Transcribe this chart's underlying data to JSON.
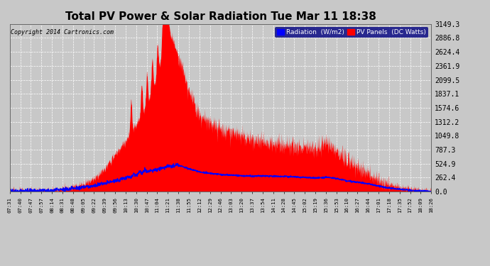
{
  "title": "Total PV Power & Solar Radiation Tue Mar 11 18:38",
  "copyright": "Copyright 2014 Cartronics.com",
  "legend_radiation": "Radiation  (W/m2)",
  "legend_pv": "PV Panels  (DC Watts)",
  "yticks": [
    0.0,
    262.4,
    524.9,
    787.3,
    1049.8,
    1312.2,
    1574.6,
    1837.1,
    2099.5,
    2361.9,
    2624.4,
    2886.8,
    3149.3
  ],
  "ymax": 3149.3,
  "background_color": "#c8c8c8",
  "plot_bg_color": "#c8c8c8",
  "grid_color": "#ffffff",
  "radiation_color": "#0000ff",
  "pv_color": "#ff0000",
  "title_fontsize": 11,
  "x_labels": [
    "07:31",
    "07:40",
    "07:47",
    "07:57",
    "08:14",
    "08:31",
    "08:48",
    "09:05",
    "09:22",
    "09:39",
    "09:56",
    "10:13",
    "10:30",
    "10:47",
    "11:04",
    "11:21",
    "11:38",
    "11:55",
    "12:12",
    "12:29",
    "12:46",
    "13:03",
    "13:20",
    "13:37",
    "13:54",
    "14:11",
    "14:28",
    "14:45",
    "15:02",
    "15:19",
    "15:36",
    "15:53",
    "16:10",
    "16:27",
    "16:44",
    "17:01",
    "17:18",
    "17:35",
    "17:52",
    "18:09",
    "18:26"
  ],
  "pv_data_raw": [
    5,
    8,
    10,
    15,
    30,
    55,
    90,
    150,
    250,
    420,
    700,
    950,
    1250,
    1620,
    2150,
    3149,
    2550,
    1900,
    1400,
    1300,
    1200,
    1100,
    1050,
    980,
    950,
    900,
    880,
    850,
    820,
    830,
    900,
    780,
    600,
    480,
    370,
    220,
    140,
    80,
    45,
    20,
    5
  ],
  "radiation_data_raw": [
    5,
    8,
    10,
    12,
    20,
    35,
    55,
    80,
    110,
    155,
    200,
    255,
    310,
    370,
    410,
    480,
    490,
    430,
    370,
    340,
    320,
    305,
    295,
    290,
    295,
    285,
    285,
    275,
    265,
    255,
    270,
    245,
    200,
    175,
    148,
    100,
    65,
    42,
    25,
    12,
    5
  ]
}
